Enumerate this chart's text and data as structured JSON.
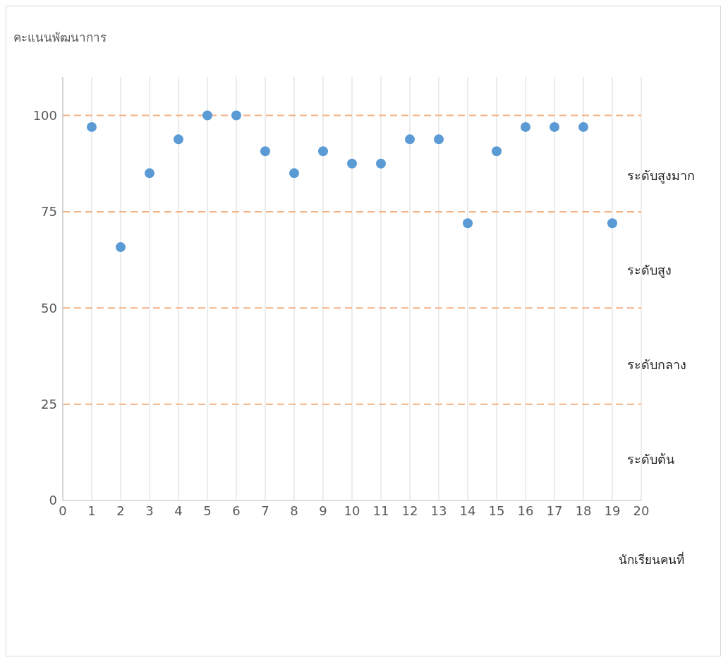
{
  "chart_data": {
    "type": "scatter",
    "ylabel": "คะแนนพัฒนาการ",
    "xlabel": "นักเรียนคนที่",
    "x": [
      1,
      2,
      3,
      4,
      5,
      6,
      7,
      8,
      9,
      10,
      11,
      12,
      13,
      14,
      15,
      16,
      17,
      18,
      19
    ],
    "series": [
      {
        "color": "#5b9bd5",
        "values": [
          97,
          65.8,
          85,
          93.8,
          100,
          100,
          90.7,
          85,
          90.7,
          87.5,
          87.5,
          93.8,
          93.8,
          72,
          90.7,
          97,
          97,
          97,
          72
        ]
      }
    ],
    "marker": "circle",
    "xlim": [
      0,
      20
    ],
    "xticks": [
      0,
      1,
      2,
      3,
      4,
      5,
      6,
      7,
      8,
      9,
      10,
      11,
      12,
      13,
      14,
      15,
      16,
      17,
      18,
      19,
      20
    ],
    "ylim": [
      0,
      110
    ],
    "yticks": [
      0,
      25,
      50,
      75,
      100
    ],
    "grid": "x",
    "ref_lines": [
      {
        "axis": "y",
        "value": 25,
        "color": "#f4b183",
        "line_style": "dashed"
      },
      {
        "axis": "y",
        "value": 50,
        "color": "#f4b183",
        "line_style": "dashed"
      },
      {
        "axis": "y",
        "value": 75,
        "color": "#f4b183",
        "line_style": "dashed"
      },
      {
        "axis": "y",
        "value": 100,
        "color": "#f4b183",
        "line_style": "dashed"
      }
    ],
    "annotations": [
      "ระดับสูงมาก",
      "ระดับสูง",
      "ระดับกลาง",
      "ระดับต้น"
    ]
  }
}
